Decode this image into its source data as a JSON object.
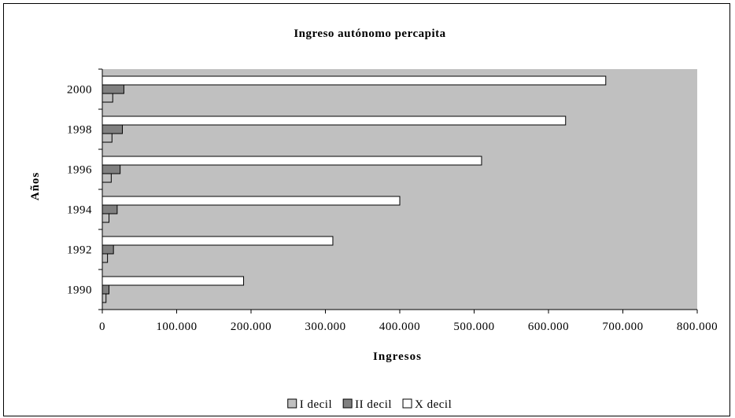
{
  "colors": {
    "plot_background": "#c0c0c0",
    "series_I": "#c0c0c0",
    "series_II": "#808080",
    "series_X": "#ffffff",
    "outline": "#000000"
  },
  "chart_data": {
    "type": "bar",
    "orientation": "horizontal",
    "title": "Ingreso autónomo percapita",
    "xlabel": "Ingresos",
    "ylabel": "Años",
    "categories": [
      "1990",
      "1992",
      "1994",
      "1996",
      "1998",
      "2000"
    ],
    "xlim": [
      0,
      800000
    ],
    "x_ticks": [
      0,
      100000,
      200000,
      300000,
      400000,
      500000,
      600000,
      700000,
      800000
    ],
    "x_tick_labels": [
      "0",
      "100.000",
      "200.000",
      "300.000",
      "400.000",
      "500.000",
      "600.000",
      "700.000",
      "800.000"
    ],
    "grid": false,
    "legend_position": "bottom",
    "series": [
      {
        "name": "I decil",
        "values": [
          5000,
          7000,
          9000,
          12000,
          13000,
          14000
        ]
      },
      {
        "name": "II decil",
        "values": [
          9000,
          15000,
          20000,
          24000,
          27000,
          29000
        ]
      },
      {
        "name": "X decil",
        "values": [
          190000,
          310000,
          400000,
          510000,
          623000,
          677000
        ]
      }
    ]
  }
}
